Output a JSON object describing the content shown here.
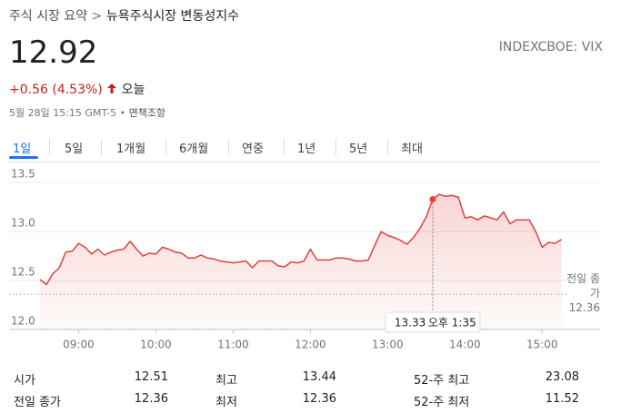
{
  "breadcrumb": [
    "주식 시장 요약",
    ">",
    "뉴욕주식시장 변동성지수"
  ],
  "price": "12.92",
  "ticker": "INDEXCBOE: VIX",
  "change": "+0.56 (4.53%)",
  "period": "오늘",
  "timestamp": "5월 28일 15:15 GMT-5 • ",
  "disclaimer": "면책조항",
  "tabs": [
    "1일",
    "5일",
    "1개월",
    "6개월",
    "연중",
    "1년",
    "5년",
    "최대"
  ],
  "chart_data": {
    "type": "line",
    "color": "#e0413a",
    "x": [
      510,
      515,
      520,
      525,
      530,
      535,
      540,
      545,
      550,
      555,
      560,
      565,
      570,
      575,
      580,
      585,
      590,
      595,
      600,
      605,
      610,
      615,
      620,
      625,
      630,
      635,
      640,
      645,
      650,
      655,
      660,
      665,
      670,
      675,
      680,
      685,
      690,
      695,
      700,
      705,
      710,
      715,
      720,
      725,
      730,
      735,
      740,
      745,
      750,
      755,
      760,
      765,
      770,
      775,
      780,
      785,
      790,
      795,
      800,
      805,
      810,
      815,
      820,
      825,
      830,
      835,
      840,
      845,
      850,
      855,
      860,
      865,
      870,
      875,
      880,
      885,
      890,
      895,
      900,
      905,
      910,
      915
    ],
    "values": [
      12.51,
      12.46,
      12.57,
      12.63,
      12.79,
      12.8,
      12.88,
      12.84,
      12.77,
      12.82,
      12.76,
      12.79,
      12.81,
      12.82,
      12.9,
      12.82,
      12.75,
      12.78,
      12.77,
      12.84,
      12.82,
      12.79,
      12.78,
      12.73,
      12.73,
      12.76,
      12.73,
      12.72,
      12.7,
      12.69,
      12.68,
      12.69,
      12.7,
      12.63,
      12.7,
      12.7,
      12.7,
      12.65,
      12.64,
      12.69,
      12.68,
      12.7,
      12.82,
      12.71,
      12.71,
      12.71,
      12.73,
      12.73,
      12.72,
      12.7,
      12.7,
      12.71,
      12.86,
      13.0,
      12.96,
      12.94,
      12.91,
      12.87,
      12.94,
      13.03,
      13.15,
      13.33,
      13.38,
      13.36,
      13.37,
      13.35,
      13.14,
      13.15,
      13.12,
      13.16,
      13.14,
      13.12,
      13.2,
      13.08,
      13.12,
      13.12,
      13.12,
      13.0,
      12.84,
      12.89,
      12.88,
      12.92
    ],
    "xlim": [
      486,
      945
    ],
    "ylim": [
      12,
      13.65
    ],
    "xticks": [
      {
        "value": 540,
        "label": "09:00"
      },
      {
        "value": 600,
        "label": "10:00"
      },
      {
        "value": 660,
        "label": "11:00"
      },
      {
        "value": 720,
        "label": "12:00"
      },
      {
        "value": 780,
        "label": "13:00"
      },
      {
        "value": 840,
        "label": "14:00"
      },
      {
        "value": 900,
        "label": "15:00"
      }
    ],
    "yticks": [
      {
        "value": 12,
        "label": "12.0"
      },
      12.5,
      {
        "value": 13,
        "label": "13.0"
      },
      13.5
    ],
    "grid": true,
    "previous_close": {
      "label": "전일 종가",
      "value": 12.36
    },
    "tooltip": {
      "x": 815,
      "value": 13.33,
      "time": "오후 1:35"
    }
  },
  "stats": {
    "rows": [
      [
        "시가",
        "12.51",
        "최고",
        "13.44",
        "52-주 최고",
        "23.08"
      ],
      [
        "전일 종가",
        "12.36",
        "최저",
        "12.36",
        "52-주 최저",
        "11.52"
      ]
    ]
  }
}
